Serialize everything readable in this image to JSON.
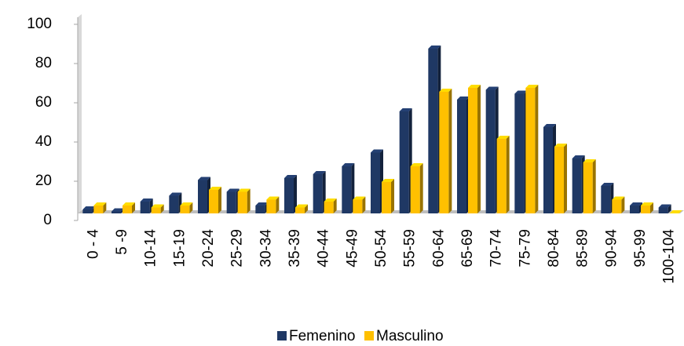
{
  "chart_data": {
    "type": "bar3d",
    "categories": [
      "0 - 4",
      "5 -9",
      "10-14",
      "15-19",
      "20-24",
      "25-29",
      "30-34",
      "35-39",
      "40-44",
      "45-49",
      "50-54",
      "55-59",
      "60-64",
      "65-69",
      "70-74",
      "75-79",
      "80-84",
      "85-89",
      "90-94",
      "95-99",
      "100-104"
    ],
    "series": [
      {
        "name": "Femenino",
        "color": "#1f3864",
        "values": [
          2,
          1,
          6,
          9,
          17,
          11,
          4,
          18,
          20,
          24,
          31,
          52,
          84,
          58,
          63,
          61,
          44,
          28,
          14,
          4,
          3
        ]
      },
      {
        "name": "Masculino",
        "color": "#ffc000",
        "values": [
          4,
          4,
          3,
          4,
          12,
          11,
          7,
          3,
          6,
          7,
          16,
          24,
          62,
          64,
          38,
          64,
          34,
          26,
          7,
          4,
          0
        ]
      }
    ],
    "ylim": [
      0,
      100
    ],
    "yticks": [
      0,
      20,
      40,
      60,
      80,
      100
    ],
    "grid": false
  }
}
